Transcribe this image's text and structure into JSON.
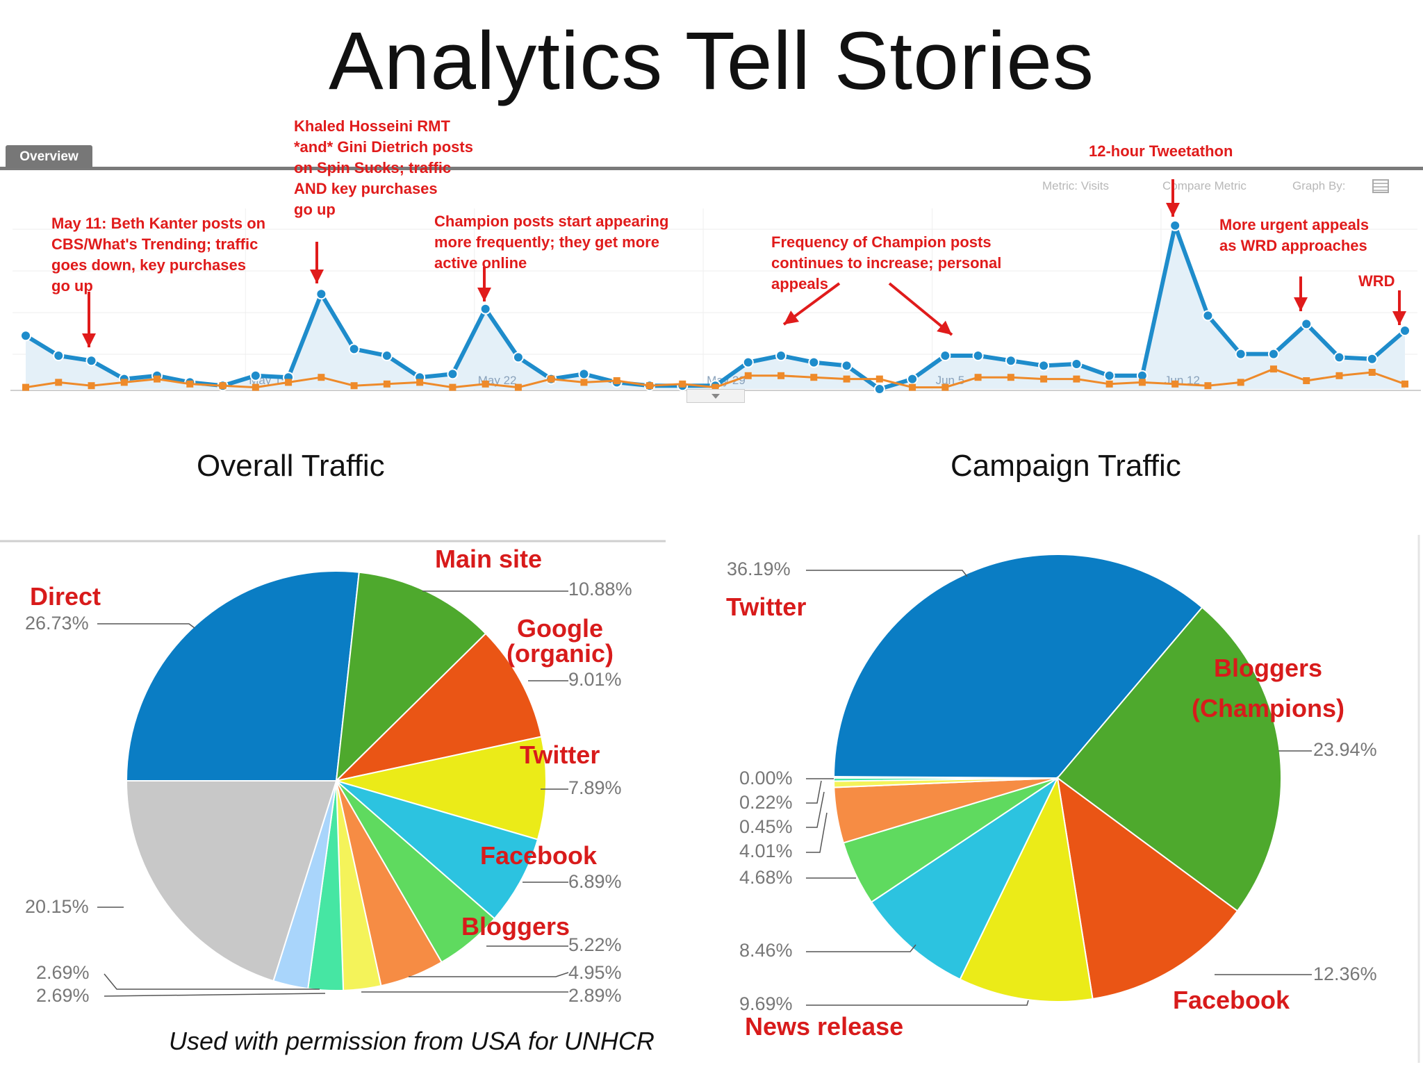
{
  "title": "Analytics Tell Stories",
  "overview": {
    "tab_label": "Overview",
    "metric_label": "Metric: Visits",
    "compare_label": "Compare Metric",
    "graph_by_label": "Graph By:",
    "x_ticks": [
      "May 15",
      "May 22",
      "May 29",
      "Jun 5",
      "Jun 12"
    ]
  },
  "annotations": [
    {
      "id": "beth",
      "lines": [
        "May 11: Beth Kanter posts on",
        "CBS/What's Trending; traffic",
        "goes down, key purchases",
        "go up"
      ]
    },
    {
      "id": "khaled",
      "lines": [
        "Khaled Hosseini RMT",
        "*and* Gini Dietrich posts",
        "on Spin Sucks; traffic",
        "AND key purchases",
        "go up"
      ]
    },
    {
      "id": "champion",
      "lines": [
        "Champion posts start appearing",
        "more frequently; they get more",
        "active online"
      ]
    },
    {
      "id": "frequency",
      "lines": [
        "Frequency of Champion posts",
        "continues to increase; personal",
        "appeals"
      ]
    },
    {
      "id": "tweetathon",
      "lines": [
        "12-hour Tweetathon"
      ]
    },
    {
      "id": "urgent",
      "lines": [
        "More urgent appeals",
        "as WRD approaches"
      ]
    },
    {
      "id": "wrd",
      "lines": [
        "WRD"
      ]
    }
  ],
  "sections": {
    "overall": "Overall Traffic",
    "campaign": "Campaign Traffic"
  },
  "credit": "Used with permission from USA for UNHCR",
  "colors": {
    "line_visits": "#1e8ccb",
    "line_campaign": "#ee8a2a",
    "area_fill": "#e4f0f8",
    "annotation": "#e01b1b"
  },
  "chart_data": [
    {
      "type": "line",
      "title": "",
      "xlabel": "",
      "ylabel": "",
      "x_ticks": [
        "May 15",
        "May 22",
        "May 29",
        "Jun 5",
        "Jun 12"
      ],
      "ylim": [
        0,
        100
      ],
      "grid": true,
      "series": [
        {
          "values": [
            32,
            20,
            17,
            6,
            8,
            4,
            2,
            8,
            7,
            57,
            24,
            20,
            7,
            9,
            48,
            19,
            6,
            9,
            4,
            2,
            2,
            2,
            16,
            20,
            16,
            14,
            0,
            6,
            20,
            20,
            17,
            14,
            15,
            8,
            8,
            98,
            44,
            21,
            21,
            39,
            19,
            18,
            35
          ]
        },
        {
          "values": [
            1,
            4,
            2,
            4,
            6,
            3,
            2,
            1,
            4,
            7,
            2,
            3,
            4,
            1,
            3,
            1,
            6,
            4,
            5,
            2,
            3,
            1,
            8,
            8,
            7,
            6,
            6,
            1,
            1,
            7,
            7,
            6,
            6,
            3,
            4,
            3,
            2,
            4,
            12,
            5,
            8,
            10,
            3
          ]
        }
      ]
    },
    {
      "type": "pie",
      "title": "",
      "slices": [
        {
          "label": "Direct",
          "value": 26.73,
          "color": "#0a7dc4"
        },
        {
          "label": "Main site",
          "value": 10.88,
          "color": "#4ea92d"
        },
        {
          "label": "Google (organic)",
          "value": 9.01,
          "color": "#ea5515"
        },
        {
          "label": "Twitter",
          "value": 7.89,
          "color": "#ebeb18"
        },
        {
          "label": "Facebook",
          "value": 6.89,
          "color": "#2cc3e0"
        },
        {
          "label": "Bloggers",
          "value": 5.22,
          "color": "#5fda5f"
        },
        {
          "label": "",
          "value": 4.95,
          "color": "#f68c44"
        },
        {
          "label": "",
          "value": 2.89,
          "color": "#f4f35a"
        },
        {
          "label": "",
          "value": 2.69,
          "color": "#46e6a3"
        },
        {
          "label": "",
          "value": 2.69,
          "color": "#a9d5fb"
        },
        {
          "label": "",
          "value": 20.15,
          "color": "#c8c8c8"
        }
      ],
      "value_labels": [
        "26.73%",
        "10.88%",
        "9.01%",
        "7.89%",
        "6.89%",
        "5.22%",
        "4.95%",
        "2.89%",
        "2.69%",
        "2.69%",
        "20.15%"
      ]
    },
    {
      "type": "pie",
      "title": "",
      "slices": [
        {
          "label": "Twitter",
          "value": 36.19,
          "color": "#0a7dc4"
        },
        {
          "label": "Bloggers (Champions)",
          "value": 23.94,
          "color": "#4ea92d"
        },
        {
          "label": "Facebook",
          "value": 12.36,
          "color": "#ea5515"
        },
        {
          "label": "News release",
          "value": 9.69,
          "color": "#ebeb18"
        },
        {
          "label": "",
          "value": 8.46,
          "color": "#2cc3e0"
        },
        {
          "label": "",
          "value": 4.68,
          "color": "#5fda5f"
        },
        {
          "label": "",
          "value": 4.01,
          "color": "#f68c44"
        },
        {
          "label": "",
          "value": 0.45,
          "color": "#f4f35a"
        },
        {
          "label": "",
          "value": 0.22,
          "color": "#46e6a3"
        },
        {
          "label": "",
          "value": 0.0,
          "color": "#a9d5fb"
        }
      ],
      "value_labels": [
        "36.19%",
        "23.94%",
        "12.36%",
        "9.69%",
        "8.46%",
        "4.68%",
        "4.01%",
        "0.45%",
        "0.22%",
        "0.00%"
      ]
    }
  ]
}
